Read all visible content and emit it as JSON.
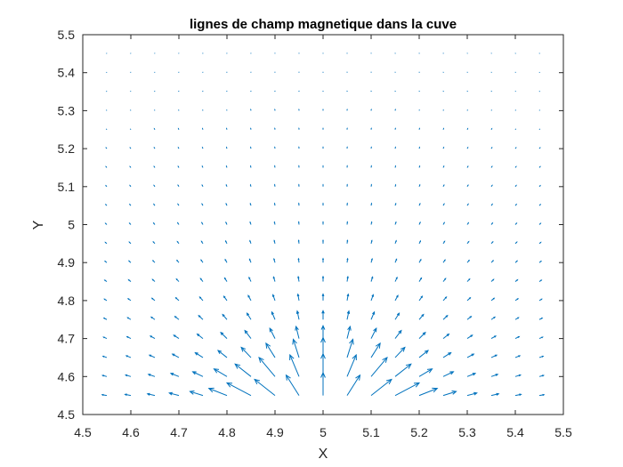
{
  "chart_data": {
    "type": "quiver",
    "title": "lignes de champ magnetique dans la cuve",
    "xlabel": "X",
    "ylabel": "Y",
    "xlim": [
      4.5,
      5.5
    ],
    "ylim": [
      4.5,
      5.5
    ],
    "xticks": [
      "4.5",
      "4.6",
      "4.7",
      "4.8",
      "4.9",
      "5",
      "5.1",
      "5.2",
      "5.3",
      "5.4",
      "5.5"
    ],
    "yticks": [
      "4.5",
      "4.6",
      "4.7",
      "4.8",
      "4.9",
      "5",
      "5.1",
      "5.2",
      "5.3",
      "5.4",
      "5.5"
    ],
    "grid": false,
    "arrow_color": "#0072BD",
    "field": {
      "x_start": 4.55,
      "x_step": 0.05,
      "nx": 19,
      "y_start": 4.55,
      "y_step": 0.05,
      "ny": 19,
      "source": [
        5.0,
        4.45
      ],
      "description_unit": "arrows point radially away from source point, length decays with distance"
    }
  }
}
